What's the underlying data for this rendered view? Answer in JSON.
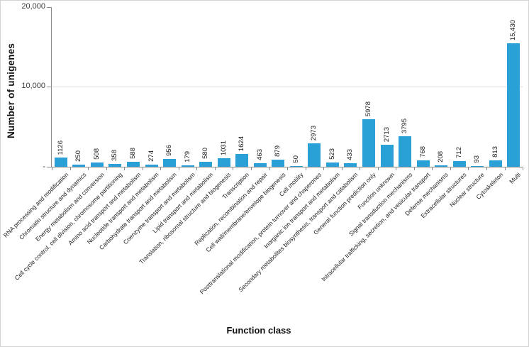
{
  "chart_data": {
    "type": "bar",
    "title": "",
    "xlabel": "Function class",
    "ylabel": "Number of unigenes",
    "ylim": [
      0,
      20000
    ],
    "grid": "horizontal gridline at 10000 only",
    "legend": "none",
    "bar_color": "#29a0d6",
    "axis_color": "#8c8c8c",
    "yticks": [
      {
        "value": 20000,
        "label": "20,000"
      },
      {
        "value": 10000,
        "label": "10,000"
      },
      {
        "value": 0,
        "label": "-"
      }
    ],
    "categories": [
      "RNA processing and modification",
      "Chromatin structure and dynamics",
      "Energy metabolism and conversion",
      "Cell cycle control, cell division, chromosome partitioning",
      "Amino acid transport and metabolism",
      "Nucleotide transport and metabolism",
      "Carbohydrate transport and metabolism",
      "Coenzyme transport and metabolism",
      "Lipid transport and metabolism",
      "Translation, ribosomal structure and biogenesis",
      "Transcription",
      "Replication, recombination and repair",
      "Cell wall/membrane/envelope biogenesis",
      "Cell motility",
      "Posttranslational modification, protein turnover and chaperones",
      "Inorganic ion transport and metabolism",
      "Secondary metabolites biosynthesis, transport and catabolism",
      "General function prediction only",
      "Function unknown",
      "Signal transduction mechanisms",
      "Intracellular trafficking, secretion, and vesicular transport",
      "Defense mechanisms",
      "Extracellular structures",
      "Nuclear structure",
      "Cytoskeleton",
      "Multi"
    ],
    "values": [
      1126,
      250,
      508,
      358,
      588,
      274,
      956,
      179,
      580,
      1031,
      1624,
      463,
      879,
      50,
      2973,
      523,
      433,
      5978,
      2713,
      3795,
      768,
      208,
      712,
      93,
      813,
      15430
    ],
    "value_labels": [
      "1126",
      "250",
      "508",
      "358",
      "588",
      "274",
      "956",
      "179",
      "580",
      "1031",
      "1624",
      "463",
      "879",
      "50",
      "2973",
      "523",
      "433",
      "5978",
      "2713",
      "3795",
      "768",
      "208",
      "712",
      "93",
      "813",
      "15,430"
    ]
  }
}
